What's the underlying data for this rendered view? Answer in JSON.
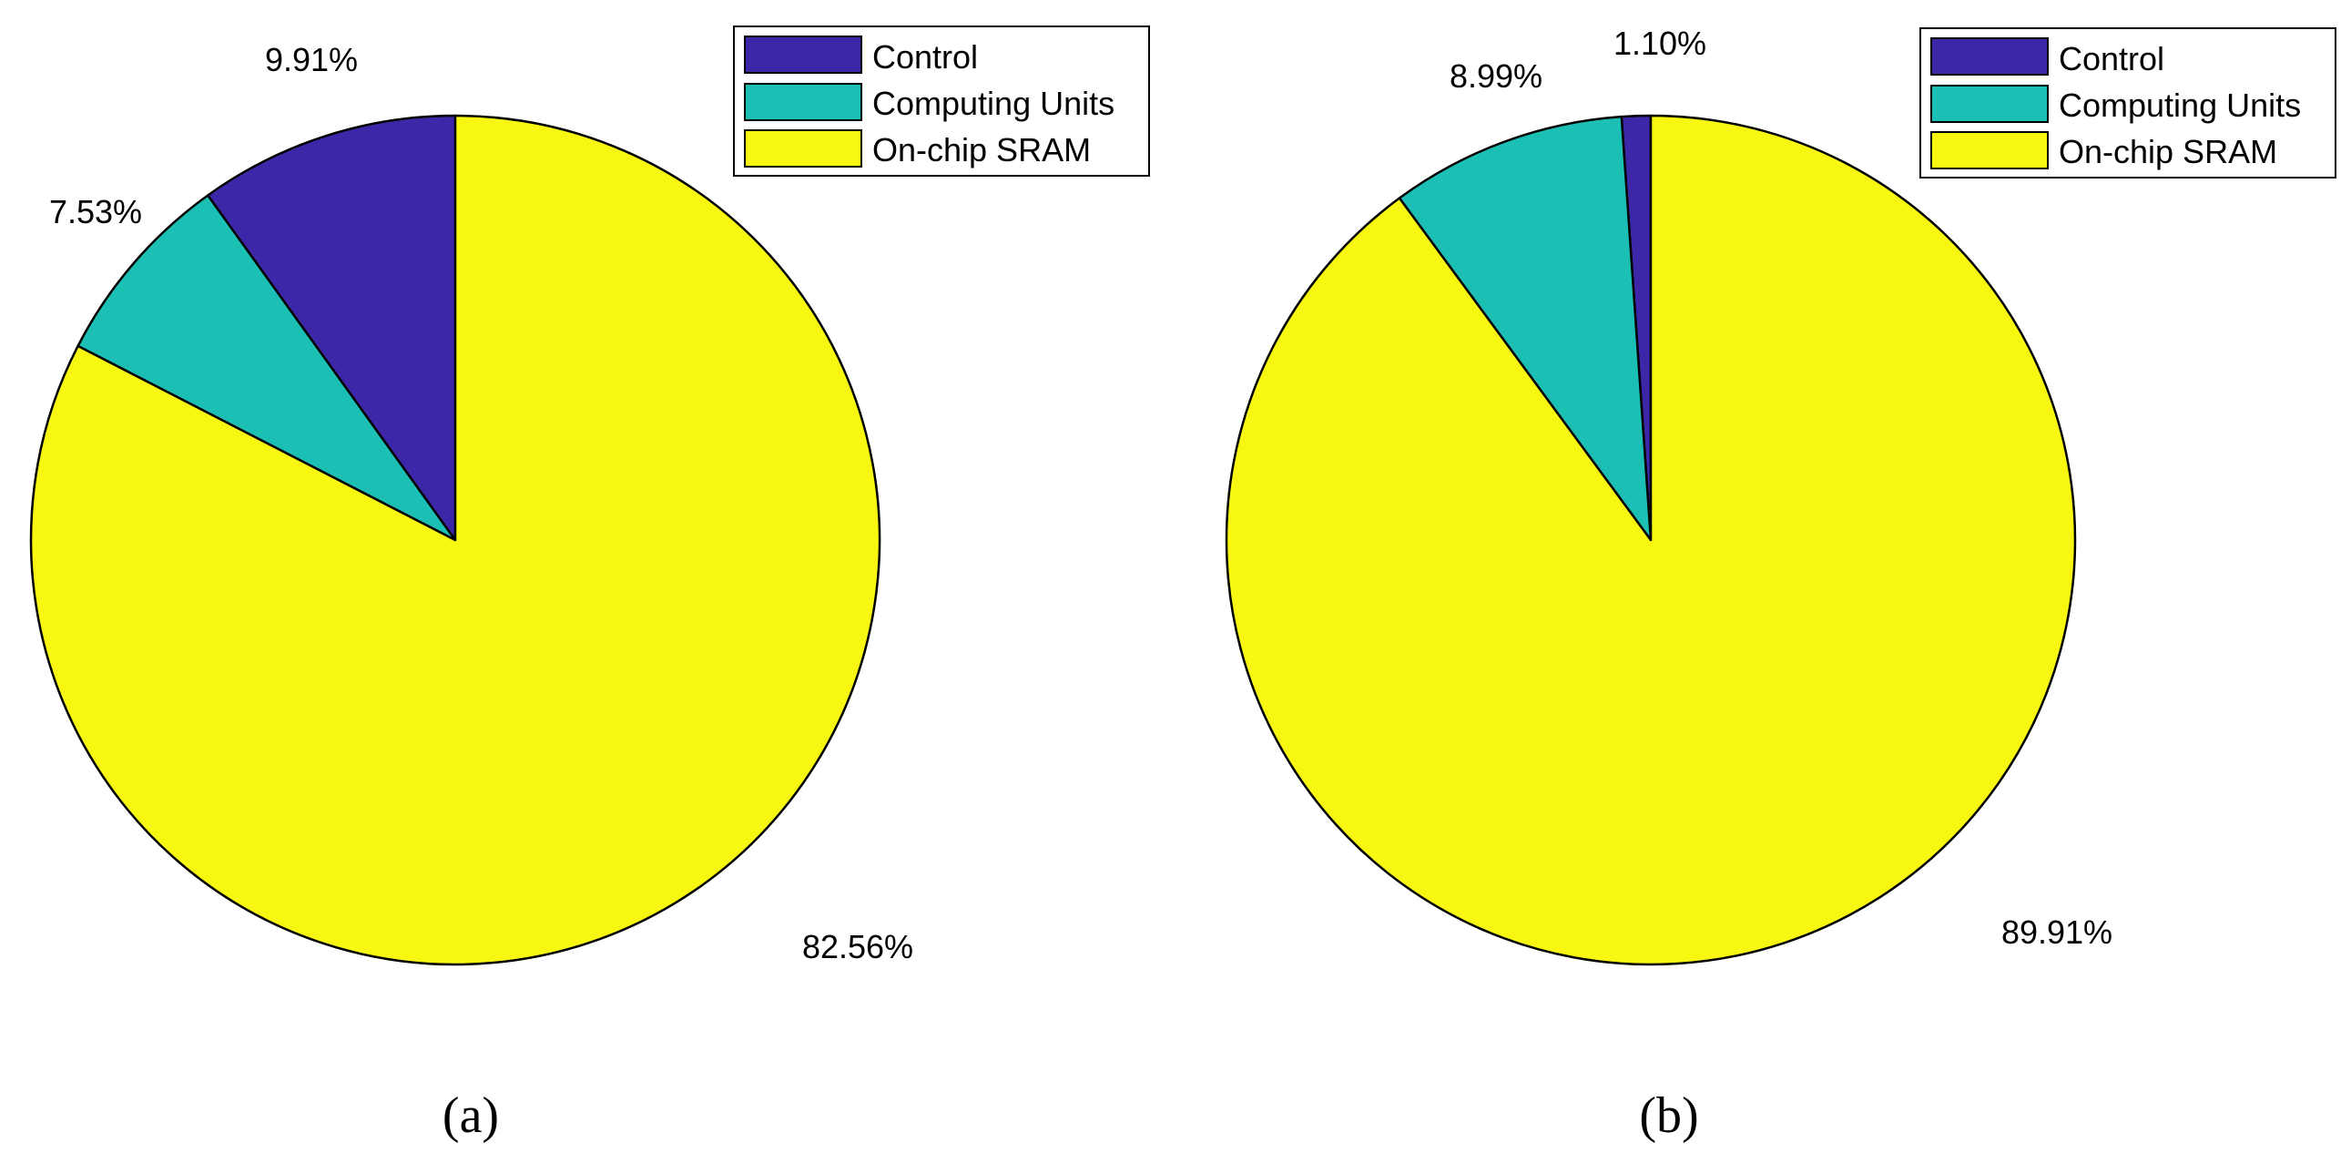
{
  "chart_data": [
    {
      "type": "pie",
      "caption": "(a)",
      "slices": [
        {
          "name": "Control",
          "value": 9.91,
          "label": "9.91%",
          "color": "#3E26A8"
        },
        {
          "name": "Computing Units",
          "value": 7.53,
          "label": "7.53%",
          "color": "#1BBFB4"
        },
        {
          "name": "On-chip SRAM",
          "value": 82.56,
          "label": "82.56%",
          "color": "#F7F712"
        }
      ],
      "legend": {
        "placement": "top-right",
        "entries": [
          "Control",
          "Computing Units",
          "On-chip SRAM"
        ]
      }
    },
    {
      "type": "pie",
      "caption": "(b)",
      "slices": [
        {
          "name": "Control",
          "value": 1.1,
          "label": "1.10%",
          "color": "#3E26A8"
        },
        {
          "name": "Computing Units",
          "value": 8.99,
          "label": "8.99%",
          "color": "#1BBFB4"
        },
        {
          "name": "On-chip SRAM",
          "value": 89.91,
          "label": "89.91%",
          "color": "#F7F712"
        }
      ],
      "legend": {
        "placement": "top-right",
        "entries": [
          "Control",
          "Computing Units",
          "On-chip SRAM"
        ]
      }
    }
  ]
}
